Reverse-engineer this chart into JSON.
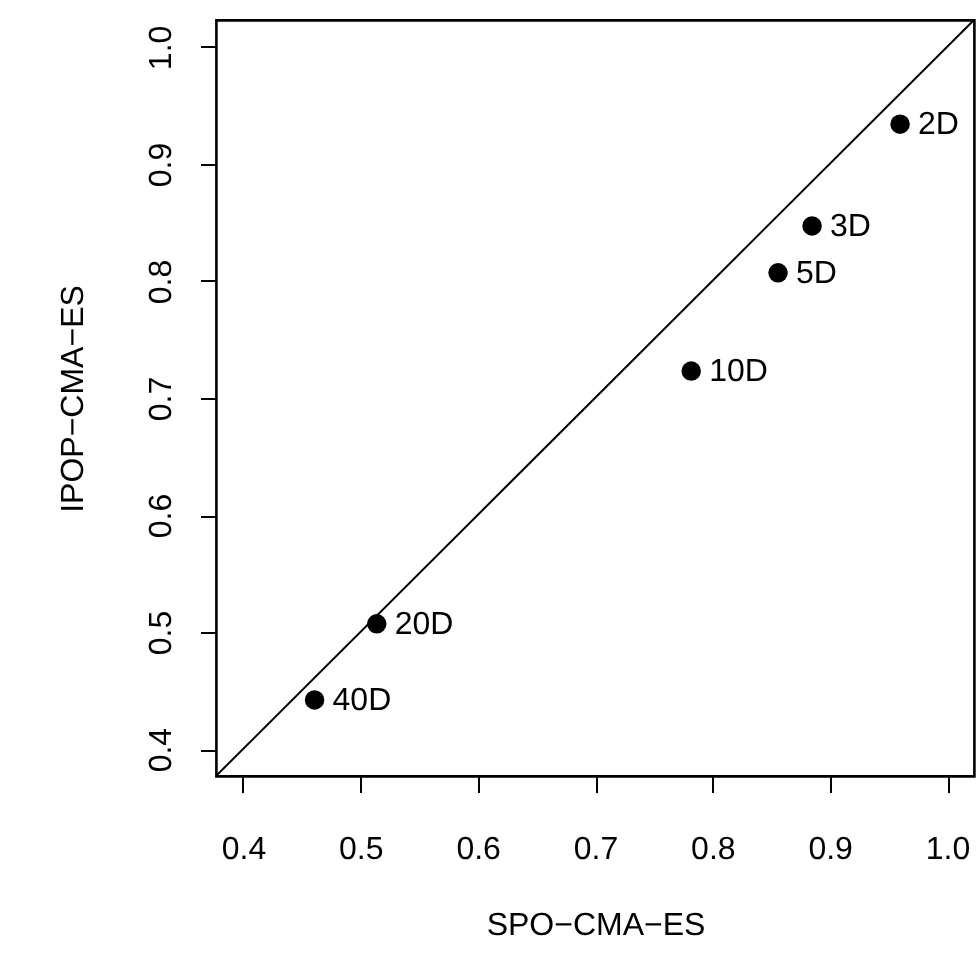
{
  "chart_data": {
    "type": "scatter",
    "xlabel": "SPO−CMA−ES",
    "ylabel": "IPOP−CMA−ES",
    "x": [
      0.96,
      0.885,
      0.856,
      0.782,
      0.514,
      0.461
    ],
    "series": [
      {
        "color": "#000000",
        "marker": "circle",
        "values": [
          0.934,
          0.847,
          0.807,
          0.723,
          0.507,
          0.442
        ]
      },
      {
        "type": "line",
        "color": "#000000",
        "marker": "none",
        "x": [
          0.377,
          1.023
        ],
        "values": [
          0.377,
          1.023
        ]
      }
    ],
    "annotations": [
      {
        "text": "2D",
        "x": 0.96,
        "y": 0.934
      },
      {
        "text": "3D",
        "x": 0.885,
        "y": 0.847
      },
      {
        "text": "5D",
        "x": 0.856,
        "y": 0.807
      },
      {
        "text": "10D",
        "x": 0.782,
        "y": 0.723
      },
      {
        "text": "20D",
        "x": 0.514,
        "y": 0.507
      },
      {
        "text": "40D",
        "x": 0.461,
        "y": 0.442
      }
    ],
    "xlim": [
      0.377,
      1.023
    ],
    "ylim": [
      0.377,
      1.023
    ],
    "xticks": [
      {
        "value": 0.4,
        "label": "0.4"
      },
      {
        "value": 0.5,
        "label": "0.5"
      },
      {
        "value": 0.6,
        "label": "0.6"
      },
      {
        "value": 0.7,
        "label": "0.7"
      },
      {
        "value": 0.8,
        "label": "0.8"
      },
      {
        "value": 0.9,
        "label": "0.9"
      },
      {
        "value": 1.0,
        "label": "1.0"
      }
    ],
    "yticks": [
      {
        "value": 0.4,
        "label": "0.4"
      },
      {
        "value": 0.5,
        "label": "0.5"
      },
      {
        "value": 0.6,
        "label": "0.6"
      },
      {
        "value": 0.7,
        "label": "0.7"
      },
      {
        "value": 0.8,
        "label": "0.8"
      },
      {
        "value": 0.9,
        "label": "0.9"
      },
      {
        "value": 1.0,
        "label": "1.0"
      }
    ],
    "grid": false
  }
}
